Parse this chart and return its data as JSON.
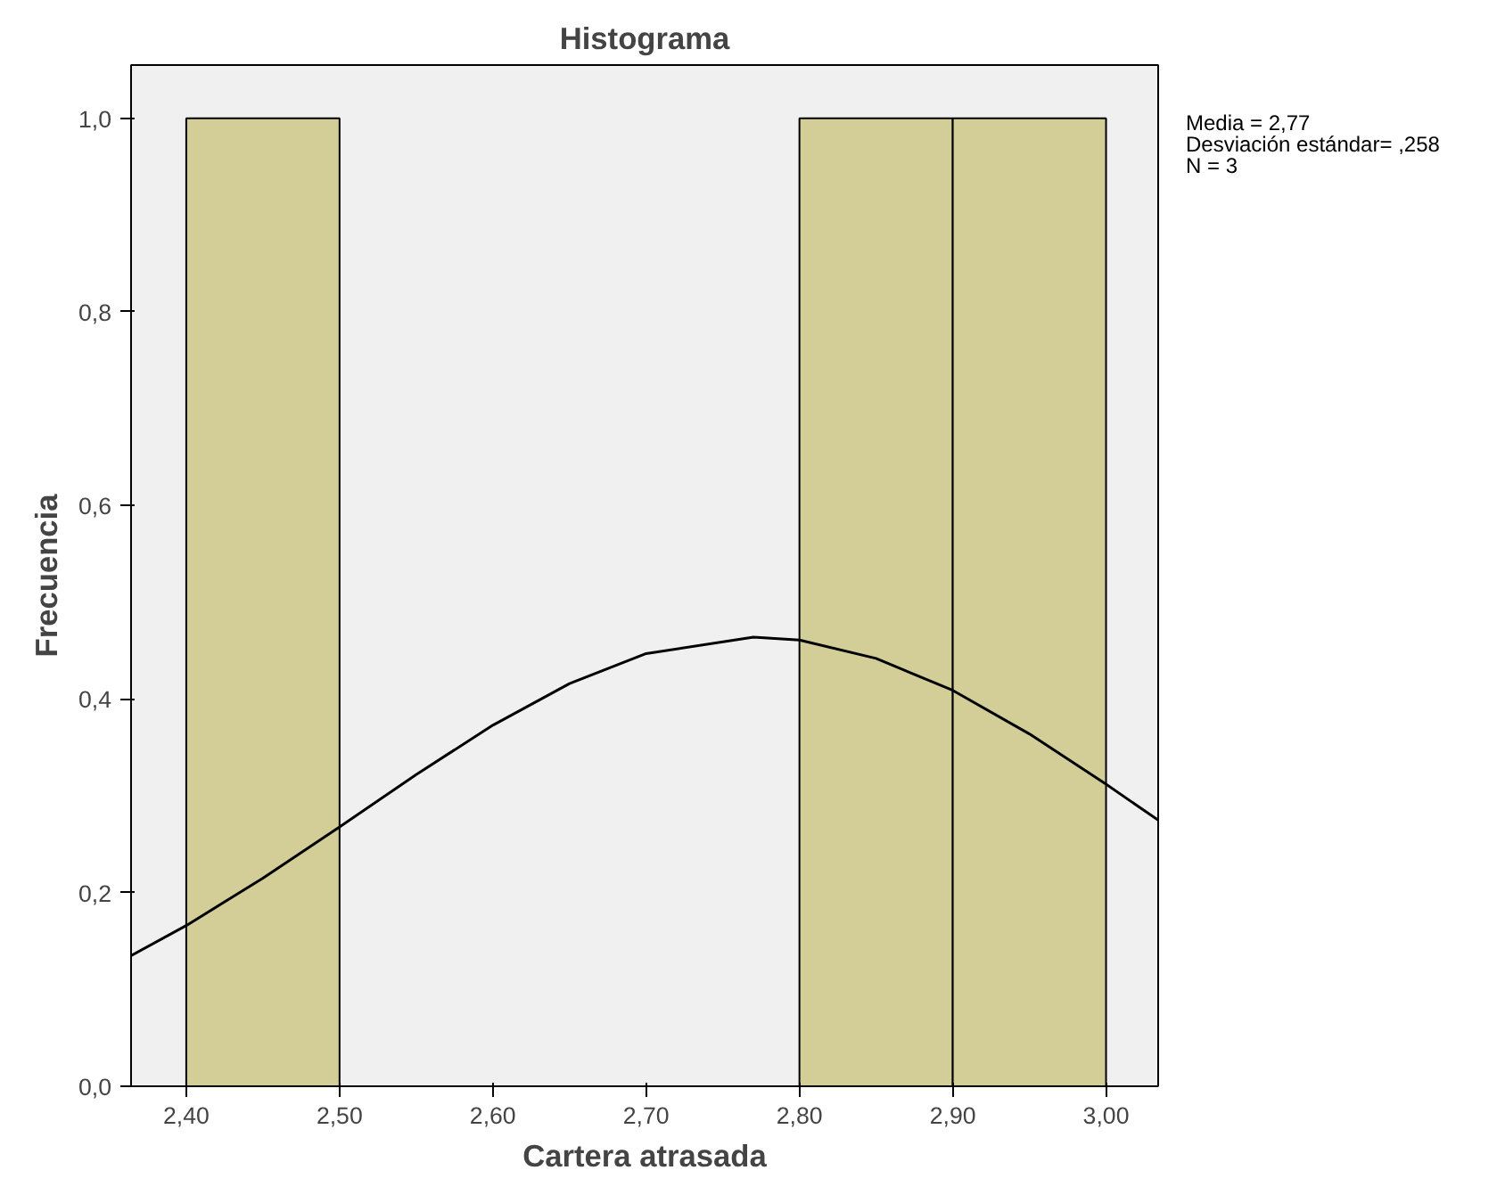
{
  "chart_data": {
    "type": "histogram",
    "title": "Histograma",
    "xlabel": "Cartera atrasada",
    "ylabel": "Frecuencia",
    "bins": [
      2.4,
      2.5,
      2.6,
      2.7,
      2.8,
      2.9,
      3.0
    ],
    "values": [
      1,
      0,
      0,
      0,
      1,
      1
    ],
    "color": "#d3ce97",
    "series": [
      {
        "type": "line",
        "color": "#000000",
        "x": [
          2.364,
          2.4,
          2.45,
          2.5,
          2.55,
          2.6,
          2.65,
          2.7,
          2.77,
          2.8,
          2.85,
          2.9,
          2.95,
          3.0,
          3.034
        ],
        "values": [
          0.135,
          0.166,
          0.215,
          0.268,
          0.322,
          0.373,
          0.416,
          0.447,
          0.464,
          0.461,
          0.442,
          0.409,
          0.364,
          0.312,
          0.275
        ]
      }
    ],
    "xlim": [
      2.364,
      3.034
    ],
    "ylim": [
      0,
      1.055
    ],
    "xticks": [
      {
        "value": 2.4,
        "label": "2,40"
      },
      {
        "value": 2.5,
        "label": "2,50"
      },
      {
        "value": 2.6,
        "label": "2,60"
      },
      {
        "value": 2.7,
        "label": "2,70"
      },
      {
        "value": 2.8,
        "label": "2,80"
      },
      {
        "value": 2.9,
        "label": "2,90"
      },
      {
        "value": 3.0,
        "label": "3,00"
      }
    ],
    "yticks": [
      {
        "value": 0,
        "label": "0,0"
      },
      {
        "value": 0.2,
        "label": "0,2"
      },
      {
        "value": 0.4,
        "label": "0,4"
      },
      {
        "value": 0.6,
        "label": "0,6"
      },
      {
        "value": 0.8,
        "label": "0,8"
      },
      {
        "value": 1.0,
        "label": "1,0"
      }
    ],
    "annotations": [
      "Media = 2,77",
      "Desviación estándar= ,258",
      "N = 3"
    ]
  }
}
